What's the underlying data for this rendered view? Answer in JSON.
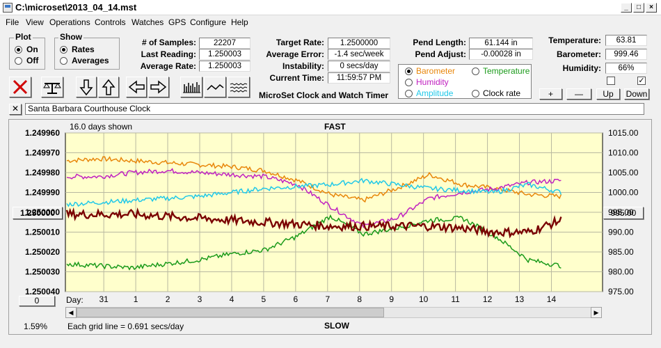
{
  "window": {
    "title": "C:\\microset\\2013_04_14.mst"
  },
  "menu": [
    "File",
    "View",
    "Operations",
    "Controls",
    "Watches",
    "GPS",
    "Configure",
    "Help"
  ],
  "plot_group": {
    "title": "Plot",
    "options": [
      "On",
      "Off"
    ],
    "selected": "On"
  },
  "show_group": {
    "title": "Show",
    "options": [
      "Rates",
      "Averages"
    ],
    "selected": "Rates"
  },
  "stats1": [
    {
      "label": "# of Samples:",
      "value": "22207"
    },
    {
      "label": "Last Reading:",
      "value": "1.250003"
    },
    {
      "label": "Average Rate:",
      "value": "1.250003"
    }
  ],
  "stats2": [
    {
      "label": "Target Rate:",
      "value": "1.2500000"
    },
    {
      "label": "Average Error:",
      "value": "-1.4 sec/week"
    },
    {
      "label": "Instability:",
      "value": "0 secs/day"
    },
    {
      "label": "Current Time:",
      "value": "11:59:57 PM"
    }
  ],
  "pend": [
    {
      "label": "Pend Length:",
      "value": "61.144 in"
    },
    {
      "label": "Pend Adjust:",
      "value": "-0.00028 in"
    }
  ],
  "env": [
    {
      "label": "Temperature:",
      "value": "63.81"
    },
    {
      "label": "Barometer:",
      "value": "999.46"
    },
    {
      "label": "Humidity:",
      "value": "66%"
    }
  ],
  "app_caption": "MicroSet Clock and Watch Timer",
  "overlay_options": [
    {
      "label": "Barometer",
      "color": "#e8860a",
      "selected": true
    },
    {
      "label": "Temperature",
      "color": "#1a9a1a",
      "selected": false
    },
    {
      "label": "Humidity",
      "color": "#c020c0",
      "selected": false
    },
    {
      "label": "Amplitude",
      "color": "#20c8e8",
      "selected": false
    },
    {
      "label": "Clock rate",
      "color": "#000000",
      "selected": false
    }
  ],
  "checkboxes": [
    false,
    true
  ],
  "adjust_buttons": [
    "+",
    "—",
    "Up",
    "Down"
  ],
  "toolbar_icons": [
    "stop-icon",
    "balance-icon",
    "arrow-down-icon",
    "arrow-up-icon",
    "arrow-left-icon",
    "arrow-right-icon",
    "bars-icon",
    "wave-icon",
    "noise-icon"
  ],
  "clock_name": "Santa Barbara Courthouse Clock",
  "graph": {
    "days_shown": "16.0 days shown",
    "top_label": "FAST",
    "bottom_label": "SLOW",
    "grid_note": "Each grid line = 0.691 secs/day",
    "percent": "1.59%",
    "center_rate_button": "1.250000",
    "center_baro_button": "995.00",
    "bottom_left_button": "0",
    "day_caption": "Day:"
  },
  "chart_data": {
    "type": "line",
    "y_left_ticks": [
      "1.249960",
      "1.249970",
      "1.249980",
      "1.249990",
      "1.250000",
      "1.250010",
      "1.250020",
      "1.250030",
      "1.250040"
    ],
    "y_right_ticks": [
      "1015.00",
      "1010.00",
      "1005.00",
      "1000.00",
      "995.00",
      "990.00",
      "985.00",
      "980.00",
      "975.00"
    ],
    "y_left_range": [
      1.24996,
      1.25004
    ],
    "y_right_range": [
      975,
      1015
    ],
    "x_ticks": [
      "31",
      "1",
      "2",
      "3",
      "4",
      "5",
      "6",
      "7",
      "8",
      "9",
      "10",
      "11",
      "12",
      "13",
      "14"
    ],
    "grid": true,
    "series": [
      {
        "color": "#e8860a",
        "x": [
          0,
          1,
          2,
          3,
          4,
          5,
          6,
          7,
          8,
          9,
          10,
          11,
          12,
          13,
          14,
          15
        ],
        "y": [
          1008,
          1008.5,
          1008,
          1007.5,
          1007,
          1006.5,
          1005.5,
          1003,
          999.5,
          998,
          1001,
          1004.5,
          1002,
          1001,
          999.5,
          999
        ]
      },
      {
        "color": "#c020c0",
        "x": [
          0,
          1,
          2,
          3,
          4,
          5,
          6,
          7,
          8,
          9,
          10,
          11,
          12,
          13,
          14,
          15
        ],
        "y": [
          1004,
          1004,
          1005,
          1005.5,
          1005,
          1004.5,
          1004,
          1002,
          996.5,
          991.5,
          993.5,
          998.5,
          1000,
          1001,
          1002.5,
          1003
        ]
      },
      {
        "color": "#20c8e8",
        "x": [
          0,
          1,
          2,
          3,
          4,
          5,
          6,
          7,
          8,
          9,
          10,
          11,
          12,
          13,
          14,
          15
        ],
        "y": [
          997,
          997.5,
          998,
          998.5,
          999,
          1000,
          1001,
          1001.5,
          1002,
          1003,
          1002,
          1001,
          1000.5,
          1000,
          1002,
          1000
        ]
      },
      {
        "color": "#1a9a1a",
        "x": [
          0,
          1,
          2,
          3,
          4,
          5,
          6,
          7,
          8,
          9,
          10,
          11,
          12,
          13,
          14,
          15
        ],
        "y": [
          982,
          981.5,
          981,
          982,
          983,
          984.5,
          985.5,
          989,
          994,
          989.5,
          991,
          993,
          993.5,
          989,
          983,
          981.5
        ]
      },
      {
        "color": "#7a0000",
        "x": [
          0,
          1,
          2,
          3,
          4,
          5,
          6,
          7,
          8,
          9,
          10,
          11,
          12,
          13,
          14,
          15
        ],
        "y": [
          994.5,
          994.5,
          994.5,
          994,
          993.5,
          993,
          992.5,
          992,
          991.5,
          991.5,
          991.5,
          991.5,
          991,
          990,
          990,
          993
        ]
      }
    ]
  }
}
